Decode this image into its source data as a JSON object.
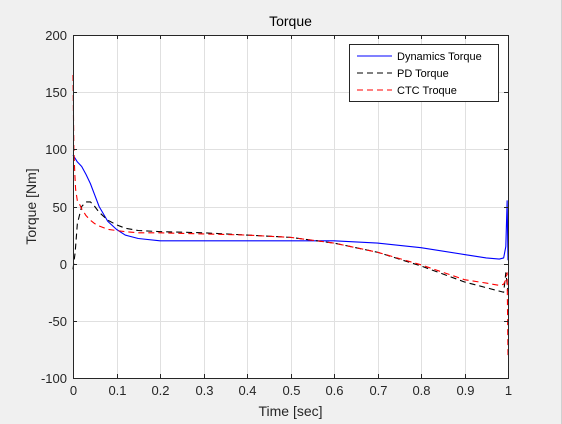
{
  "chart_data": {
    "type": "line",
    "title": "Torque",
    "xlabel": "Time [sec]",
    "ylabel": "Torque [Nm]",
    "xlim": [
      0,
      1
    ],
    "ylim": [
      -100,
      200
    ],
    "xticks": [
      0,
      0.1,
      0.2,
      0.3,
      0.4,
      0.5,
      0.6,
      0.7,
      0.8,
      0.9,
      1
    ],
    "yticks": [
      -100,
      -50,
      0,
      50,
      100,
      150,
      200
    ],
    "xtick_labels": [
      "0",
      "0.1",
      "0.2",
      "0.3",
      "0.4",
      "0.5",
      "0.6",
      "0.7",
      "0.8",
      "0.9",
      "1"
    ],
    "ytick_labels": [
      "-100",
      "-50",
      "0",
      "50",
      "100",
      "150",
      "200"
    ],
    "grid": true,
    "legend_position": "top-right",
    "series": [
      {
        "name": "Dynamics Torque",
        "color": "#0000ff",
        "dash": "solid",
        "x": [
          0,
          0.005,
          0.01,
          0.02,
          0.03,
          0.04,
          0.05,
          0.06,
          0.08,
          0.1,
          0.12,
          0.15,
          0.2,
          0.3,
          0.4,
          0.5,
          0.6,
          0.7,
          0.8,
          0.9,
          0.95,
          0.98,
          0.99,
          0.995,
          0.998,
          1.0
        ],
        "y": [
          95,
          92,
          89,
          85,
          78,
          70,
          60,
          50,
          37,
          30,
          25,
          22,
          20,
          20,
          20,
          20,
          20,
          18,
          14,
          8,
          5,
          4,
          5,
          15,
          55,
          3
        ]
      },
      {
        "name": "PD Torque",
        "color": "#000000",
        "dash": "dashed",
        "x": [
          0,
          0.005,
          0.01,
          0.02,
          0.03,
          0.04,
          0.05,
          0.06,
          0.08,
          0.1,
          0.12,
          0.15,
          0.2,
          0.3,
          0.4,
          0.5,
          0.6,
          0.7,
          0.8,
          0.9,
          0.95,
          0.98,
          0.99,
          0.995,
          1.0
        ],
        "y": [
          -5,
          10,
          35,
          50,
          54,
          54,
          50,
          45,
          38,
          34,
          31,
          29,
          28,
          27,
          25,
          23,
          18,
          10,
          -2,
          -16,
          -21,
          -24,
          -25,
          -8,
          -24
        ]
      },
      {
        "name": "CTC Troque",
        "color": "#ff0000",
        "dash": "dashed",
        "x": [
          0,
          0.002,
          0.004,
          0.006,
          0.01,
          0.015,
          0.02,
          0.03,
          0.04,
          0.05,
          0.06,
          0.08,
          0.1,
          0.12,
          0.15,
          0.2,
          0.3,
          0.4,
          0.5,
          0.6,
          0.7,
          0.8,
          0.9,
          0.95,
          0.98,
          0.99,
          0.995,
          0.998,
          1.0
        ],
        "y": [
          165,
          100,
          80,
          65,
          55,
          52,
          48,
          42,
          38,
          35,
          33,
          30,
          29,
          28,
          27,
          27,
          26,
          25,
          23,
          18,
          10,
          -1,
          -14,
          -17,
          -19,
          -18,
          -14,
          -8,
          -80
        ]
      }
    ]
  }
}
